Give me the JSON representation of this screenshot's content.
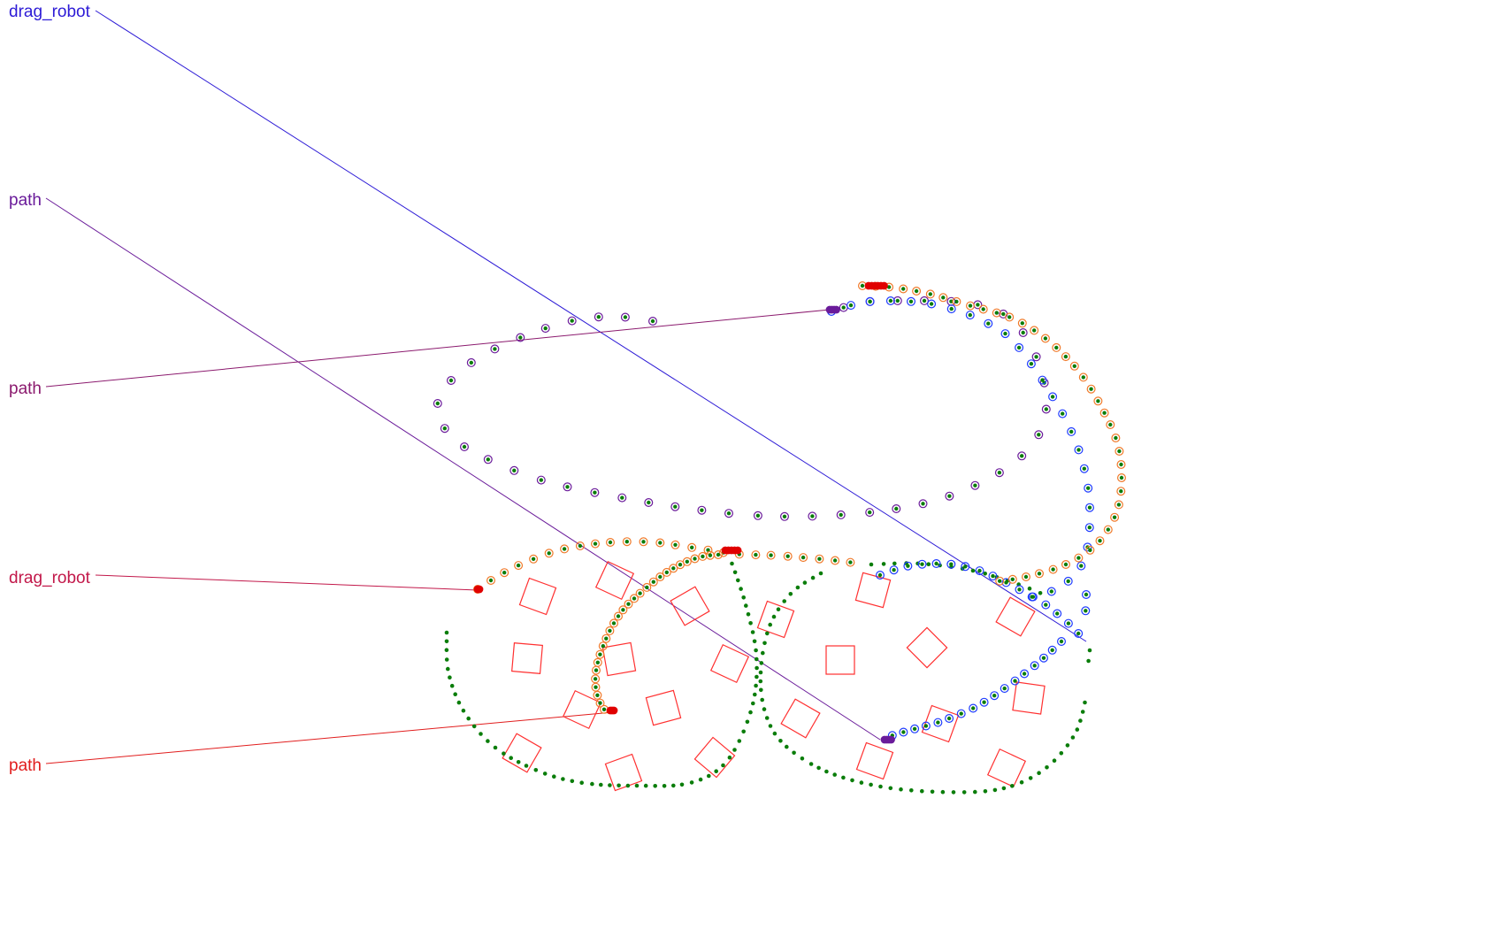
{
  "labels": [
    {
      "id": "label-1",
      "text": "drag_robot",
      "color": "#2d1bd6"
    },
    {
      "id": "label-2",
      "text": "path",
      "color": "#6a1b9a"
    },
    {
      "id": "label-3",
      "text": "path",
      "color": "#8b1a6e"
    },
    {
      "id": "label-4",
      "text": "drag_robot",
      "color": "#c2184a"
    },
    {
      "id": "label-5",
      "text": "path",
      "color": "#e11d1d"
    }
  ],
  "colors": {
    "obstacle": "#ff3030",
    "green_path": "#0a7d0a",
    "blue_path": "#1e3cff",
    "purple_path": "#6a1b9a",
    "orange_path": "#f07a2a",
    "red_endpoint": "#e00000"
  }
}
